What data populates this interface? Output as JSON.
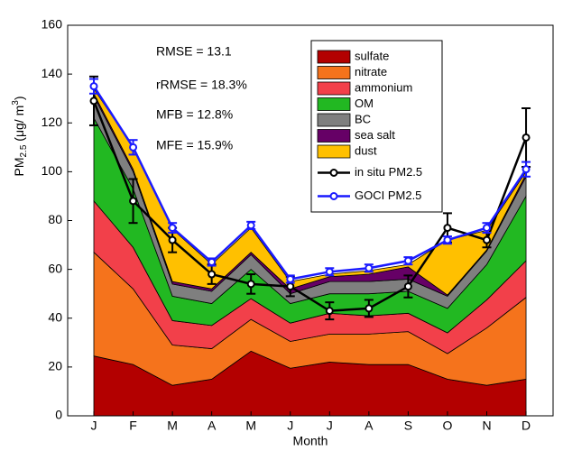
{
  "chart_data": {
    "type": "stacked_area_line",
    "y_label": [
      "PM",
      "2.5",
      " (μg/ m",
      "3",
      ")"
    ],
    "x_label": "Month",
    "annotations": [
      "RMSE = 13.1",
      "rRMSE = 18.3%",
      "MFB = 12.8%",
      "MFE = 15.9%"
    ],
    "categories": [
      "J",
      "F",
      "M",
      "A",
      "M",
      "J",
      "J",
      "A",
      "S",
      "O",
      "N",
      "D"
    ],
    "ylim": [
      0,
      160
    ],
    "yticks": [
      0,
      20,
      40,
      60,
      80,
      100,
      120,
      140,
      160
    ],
    "series": [
      {
        "name": "sulfate",
        "type": "area",
        "color": "#b30000",
        "values": [
          24.5,
          21,
          12.5,
          15,
          26.5,
          19.5,
          22,
          21,
          21,
          15,
          12.5,
          15
        ]
      },
      {
        "name": "nitrate",
        "type": "area",
        "color": "#f5731c",
        "values": [
          42.5,
          31,
          16.5,
          12.5,
          13,
          11,
          11.5,
          12.5,
          13.5,
          10.5,
          23.5,
          33.5
        ]
      },
      {
        "name": "ammonium",
        "type": "area",
        "color": "#f2404a",
        "values": [
          21,
          17,
          10,
          9.5,
          8.5,
          7.5,
          8.5,
          7.5,
          7.5,
          8.5,
          11.5,
          15
        ]
      },
      {
        "name": "OM",
        "type": "area",
        "color": "#22b822",
        "values": [
          34,
          24,
          10,
          9,
          12,
          8,
          8,
          9,
          9,
          10,
          14.5,
          26.5
        ]
      },
      {
        "name": "BC",
        "type": "area",
        "color": "#7f7f7f",
        "values": [
          9,
          7,
          5,
          5,
          6,
          4,
          5,
          5,
          5,
          5,
          5.5,
          8
        ]
      },
      {
        "name": "sea salt",
        "type": "area",
        "color": "#660066",
        "values": [
          1,
          1,
          1,
          1,
          1,
          2,
          2,
          3,
          5,
          0.5,
          0.5,
          1
        ]
      },
      {
        "name": "dust",
        "type": "area",
        "color": "#ffc000",
        "values": [
          2,
          9,
          21.5,
          10,
          10,
          3,
          1,
          1.5,
          1,
          22.5,
          8,
          1
        ]
      },
      {
        "name": "in situ PM2.5",
        "type": "line",
        "color": "#000000",
        "values": [
          129,
          88,
          72,
          58,
          54,
          53,
          43,
          44,
          53,
          77,
          72,
          114
        ],
        "errors": [
          10,
          9,
          5,
          4,
          4,
          4,
          3.5,
          3.5,
          4.5,
          6,
          3,
          12
        ]
      },
      {
        "name": "GOCI PM2.5",
        "type": "line",
        "color": "#1a1aff",
        "values": [
          135,
          110,
          77,
          63,
          78,
          56,
          59,
          60.5,
          63.5,
          72,
          77,
          101
        ],
        "errors": [
          3,
          3,
          2,
          1.5,
          1.5,
          1.5,
          1.5,
          1.5,
          1.5,
          1.5,
          2,
          3
        ]
      }
    ]
  }
}
